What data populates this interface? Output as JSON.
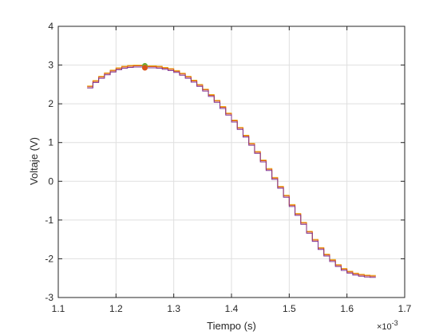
{
  "chart_data": {
    "type": "line",
    "title": "",
    "xlabel": "Tiempo (s)",
    "ylabel": "Voltaje (V)",
    "x_exponent_label": "×10",
    "x_exponent_power": "-3",
    "xlim": [
      1.1,
      1.7
    ],
    "ylim": [
      -3,
      4
    ],
    "xticks": [
      "1.1",
      "1.2",
      "1.3",
      "1.4",
      "1.5",
      "1.6",
      "1.7"
    ],
    "yticks": [
      "-3",
      "-2",
      "-1",
      "0",
      "1",
      "2",
      "3",
      "4"
    ],
    "grid": true,
    "series": [
      {
        "color": "#EDB120",
        "x": [
          1.15,
          1.16,
          1.17,
          1.18,
          1.19,
          1.2,
          1.21,
          1.22,
          1.23,
          1.24,
          1.25,
          1.26,
          1.27,
          1.28,
          1.29,
          1.3,
          1.31,
          1.32,
          1.33,
          1.34,
          1.35,
          1.36,
          1.37,
          1.38,
          1.39,
          1.4,
          1.41,
          1.42,
          1.43,
          1.44,
          1.45,
          1.46,
          1.47,
          1.48,
          1.49,
          1.5,
          1.51,
          1.52,
          1.53,
          1.54,
          1.55,
          1.56,
          1.57,
          1.58,
          1.59,
          1.6,
          1.61,
          1.62,
          1.63,
          1.64,
          1.65
        ],
        "y": [
          2.46,
          2.6,
          2.71,
          2.8,
          2.87,
          2.93,
          2.97,
          2.99,
          3.0,
          3.0,
          2.98,
          2.98,
          2.97,
          2.94,
          2.91,
          2.86,
          2.79,
          2.71,
          2.61,
          2.5,
          2.38,
          2.24,
          2.09,
          1.93,
          1.76,
          1.58,
          1.39,
          1.19,
          0.98,
          0.77,
          0.55,
          0.33,
          0.1,
          -0.13,
          -0.36,
          -0.6,
          -0.83,
          -1.06,
          -1.29,
          -1.5,
          -1.71,
          -1.88,
          -2.02,
          -2.15,
          -2.25,
          -2.32,
          -2.37,
          -2.4,
          -2.42,
          -2.43,
          -2.43
        ]
      },
      {
        "color": "#D95319",
        "x": [
          1.15,
          1.16,
          1.17,
          1.18,
          1.19,
          1.2,
          1.21,
          1.22,
          1.23,
          1.24,
          1.25,
          1.26,
          1.27,
          1.28,
          1.29,
          1.3,
          1.31,
          1.32,
          1.33,
          1.34,
          1.35,
          1.36,
          1.37,
          1.38,
          1.39,
          1.4,
          1.41,
          1.42,
          1.43,
          1.44,
          1.45,
          1.46,
          1.47,
          1.48,
          1.49,
          1.5,
          1.51,
          1.52,
          1.53,
          1.54,
          1.55,
          1.56,
          1.57,
          1.58,
          1.59,
          1.6,
          1.61,
          1.62,
          1.63,
          1.64,
          1.65
        ],
        "y": [
          2.44,
          2.58,
          2.69,
          2.78,
          2.85,
          2.91,
          2.95,
          2.97,
          2.98,
          2.98,
          2.96,
          2.96,
          2.95,
          2.92,
          2.89,
          2.84,
          2.77,
          2.69,
          2.59,
          2.48,
          2.36,
          2.22,
          2.07,
          1.91,
          1.74,
          1.56,
          1.37,
          1.17,
          0.96,
          0.75,
          0.53,
          0.31,
          0.08,
          -0.15,
          -0.38,
          -0.62,
          -0.85,
          -1.08,
          -1.31,
          -1.52,
          -1.73,
          -1.9,
          -2.04,
          -2.17,
          -2.27,
          -2.34,
          -2.39,
          -2.42,
          -2.44,
          -2.45,
          -2.45
        ]
      },
      {
        "color": "#7E2F8E",
        "x": [
          1.15,
          1.16,
          1.17,
          1.18,
          1.19,
          1.2,
          1.21,
          1.22,
          1.23,
          1.24,
          1.25,
          1.26,
          1.27,
          1.28,
          1.29,
          1.3,
          1.31,
          1.32,
          1.33,
          1.34,
          1.35,
          1.36,
          1.37,
          1.38,
          1.39,
          1.4,
          1.41,
          1.42,
          1.43,
          1.44,
          1.45,
          1.46,
          1.47,
          1.48,
          1.49,
          1.5,
          1.51,
          1.52,
          1.53,
          1.54,
          1.55,
          1.56,
          1.57,
          1.58,
          1.59,
          1.6,
          1.61,
          1.62,
          1.63,
          1.64,
          1.65
        ],
        "y": [
          2.41,
          2.55,
          2.66,
          2.75,
          2.82,
          2.88,
          2.92,
          2.94,
          2.95,
          2.95,
          2.93,
          2.93,
          2.92,
          2.89,
          2.86,
          2.81,
          2.74,
          2.66,
          2.56,
          2.45,
          2.33,
          2.19,
          2.04,
          1.88,
          1.71,
          1.53,
          1.34,
          1.14,
          0.93,
          0.72,
          0.5,
          0.28,
          0.05,
          -0.18,
          -0.41,
          -0.65,
          -0.88,
          -1.11,
          -1.34,
          -1.55,
          -1.76,
          -1.93,
          -2.07,
          -2.2,
          -2.3,
          -2.37,
          -2.42,
          -2.45,
          -2.47,
          -2.48,
          -2.48
        ]
      }
    ],
    "markers": [
      {
        "x": 1.25,
        "y": 2.98,
        "color": "#4DBEEE"
      },
      {
        "x": 1.25,
        "y": 2.98,
        "color": "#77AC30"
      },
      {
        "x": 1.25,
        "y": 2.93,
        "color": "#D95319"
      }
    ]
  }
}
